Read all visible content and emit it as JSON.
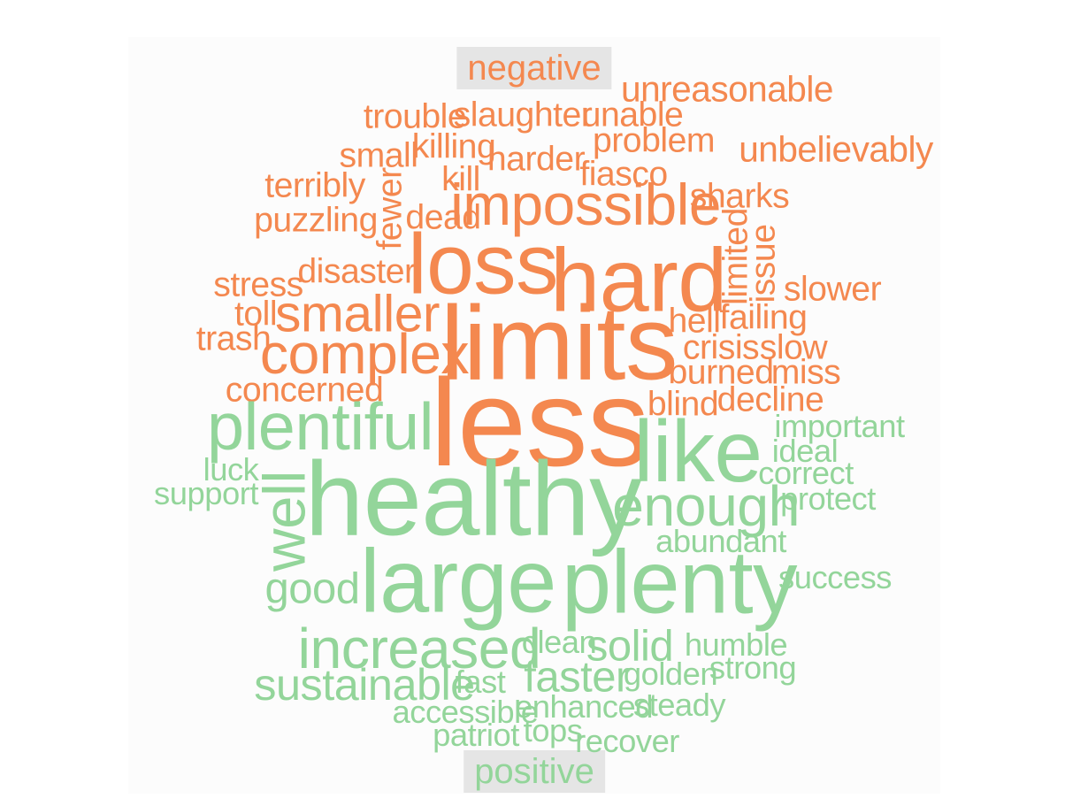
{
  "chart_data": {
    "type": "wordcloud",
    "title": "",
    "groups": [
      {
        "name": "negative",
        "color": "#f4884f",
        "words": [
          {
            "text": "less",
            "size": 10
          },
          {
            "text": "limits",
            "size": 8.5
          },
          {
            "text": "hard",
            "size": 7.2
          },
          {
            "text": "loss",
            "size": 6.9
          },
          {
            "text": "impossible",
            "size": 4.7
          },
          {
            "text": "complex",
            "size": 4.6
          },
          {
            "text": "smaller",
            "size": 4.2
          },
          {
            "text": "unreasonable",
            "size": 2.9
          },
          {
            "text": "unbelievably",
            "size": 2.9
          },
          {
            "text": "trouble",
            "size": 2.8
          },
          {
            "text": "slaughter",
            "size": 2.8
          },
          {
            "text": "unable",
            "size": 2.8
          },
          {
            "text": "problem",
            "size": 2.8
          },
          {
            "text": "small",
            "size": 2.8
          },
          {
            "text": "killing",
            "size": 2.8
          },
          {
            "text": "harder",
            "size": 2.8
          },
          {
            "text": "fiasco",
            "size": 2.8
          },
          {
            "text": "terribly",
            "size": 2.8
          },
          {
            "text": "kill",
            "size": 2.8
          },
          {
            "text": "sharks",
            "size": 2.8
          },
          {
            "text": "puzzling",
            "size": 2.8
          },
          {
            "text": "fewer",
            "size": 2.8
          },
          {
            "text": "dead",
            "size": 2.8
          },
          {
            "text": "limited",
            "size": 2.8
          },
          {
            "text": "issue",
            "size": 2.8
          },
          {
            "text": "disaster",
            "size": 2.8
          },
          {
            "text": "stress",
            "size": 2.8
          },
          {
            "text": "slower",
            "size": 2.8
          },
          {
            "text": "toll",
            "size": 2.8
          },
          {
            "text": "hell",
            "size": 2.8
          },
          {
            "text": "failing",
            "size": 2.8
          },
          {
            "text": "trash",
            "size": 2.8
          },
          {
            "text": "crisis",
            "size": 2.8
          },
          {
            "text": "slow",
            "size": 2.8
          },
          {
            "text": "burned",
            "size": 2.8
          },
          {
            "text": "miss",
            "size": 2.8
          },
          {
            "text": "concerned",
            "size": 2.8
          },
          {
            "text": "decline",
            "size": 2.8
          },
          {
            "text": "blind",
            "size": 2.8
          }
        ]
      },
      {
        "name": "positive",
        "color": "#93d59a",
        "words": [
          {
            "text": "healthy",
            "size": 8.5
          },
          {
            "text": "large",
            "size": 7.2
          },
          {
            "text": "plenty",
            "size": 7.2
          },
          {
            "text": "like",
            "size": 7
          },
          {
            "text": "plentiful",
            "size": 5.4
          },
          {
            "text": "well",
            "size": 4.8
          },
          {
            "text": "enough",
            "size": 4.6
          },
          {
            "text": "increased",
            "size": 4.6
          },
          {
            "text": "sustainable",
            "size": 3.6
          },
          {
            "text": "solid",
            "size": 3.5
          },
          {
            "text": "faster",
            "size": 3.5
          },
          {
            "text": "good",
            "size": 3.5
          },
          {
            "text": "important",
            "size": 2.6
          },
          {
            "text": "ideal",
            "size": 2.6
          },
          {
            "text": "luck",
            "size": 2.6
          },
          {
            "text": "correct",
            "size": 2.6
          },
          {
            "text": "support",
            "size": 2.6
          },
          {
            "text": "protect",
            "size": 2.6
          },
          {
            "text": "abundant",
            "size": 2.6
          },
          {
            "text": "success",
            "size": 2.6
          },
          {
            "text": "clean",
            "size": 2.6
          },
          {
            "text": "humble",
            "size": 2.6
          },
          {
            "text": "golden",
            "size": 2.6
          },
          {
            "text": "strong",
            "size": 2.6
          },
          {
            "text": "fast",
            "size": 2.6
          },
          {
            "text": "accessible",
            "size": 2.6
          },
          {
            "text": "enhanced",
            "size": 2.6
          },
          {
            "text": "steady",
            "size": 2.6
          },
          {
            "text": "patriot",
            "size": 2.6
          },
          {
            "text": "tops",
            "size": 2.6
          },
          {
            "text": "recover",
            "size": 2.6
          }
        ]
      }
    ]
  }
}
